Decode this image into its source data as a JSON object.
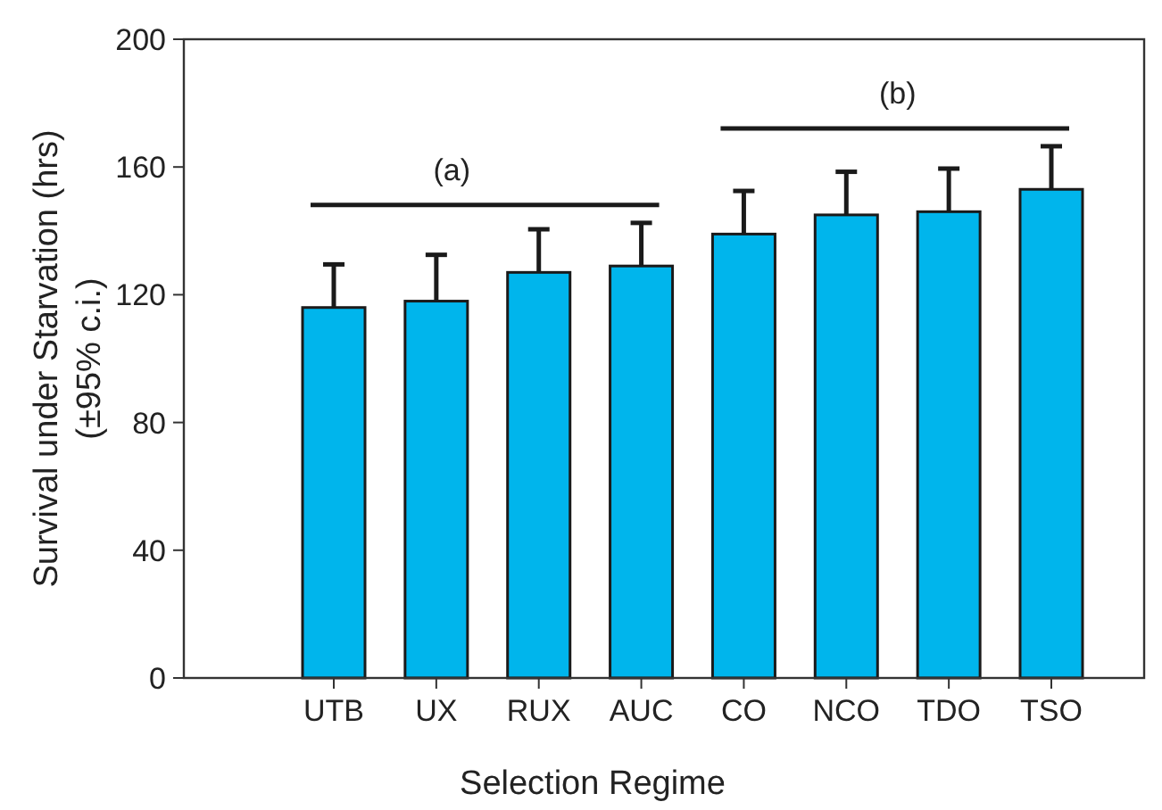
{
  "chart_data": {
    "type": "bar",
    "xlabel": "Selection Regime",
    "ylabel": "Survival under Starvation (hrs)\n(±95% c.i.)",
    "categories": [
      "UTB",
      "UX",
      "RUX",
      "AUC",
      "CO",
      "NCO",
      "TDO",
      "TSO"
    ],
    "values": [
      116,
      118,
      127,
      129,
      139,
      145,
      146,
      153
    ],
    "errors": [
      13.5,
      14.5,
      13.5,
      13.5,
      13.5,
      13.5,
      13.5,
      13.5
    ],
    "color": "#00b5ec",
    "ylim": [
      0,
      200
    ],
    "yticks": [
      0,
      40,
      80,
      120,
      160,
      200
    ],
    "annotations": [
      "(a)",
      "(b)"
    ]
  }
}
